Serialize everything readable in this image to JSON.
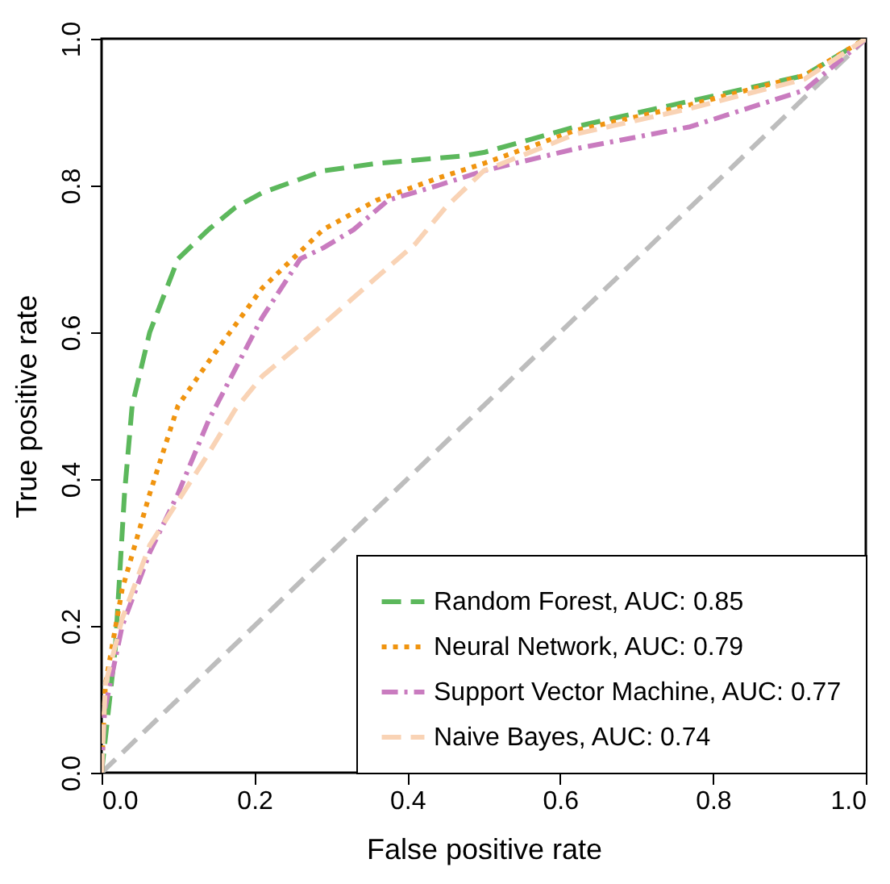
{
  "chart_data": {
    "type": "line",
    "xlabel": "False positive rate",
    "ylabel": "True positive rate",
    "xlim": [
      0,
      1
    ],
    "ylim": [
      0,
      1
    ],
    "xticks": [
      {
        "value": 0,
        "label": "0.0"
      },
      0.2,
      0.4,
      0.6,
      0.8,
      {
        "value": 1,
        "label": "1.0"
      }
    ],
    "yticks": [
      {
        "value": 0,
        "label": "0.0"
      },
      0.2,
      0.4,
      0.6,
      0.8,
      {
        "value": 1,
        "label": "1.0"
      }
    ],
    "grid": false,
    "legend": "bottom right",
    "marker": "none",
    "series": [
      {
        "name": "Random Forest, AUC: 0.85",
        "color": "#5cb85c",
        "line_style": "dashed",
        "x": [
          0,
          0.018,
          0.03,
          0.04,
          0.063,
          0.1,
          0.14,
          0.175,
          0.21,
          0.29,
          0.36,
          0.47,
          0.5,
          0.62,
          0.77,
          0.92,
          1
        ],
        "values": [
          0,
          0.17,
          0.38,
          0.5,
          0.6,
          0.7,
          0.74,
          0.77,
          0.79,
          0.82,
          0.83,
          0.84,
          0.845,
          0.88,
          0.915,
          0.95,
          1
        ]
      },
      {
        "name": "Neural Network, AUC: 0.79",
        "color": "#f0940f",
        "line_style": "dotted",
        "x": [
          0,
          0.005,
          0.027,
          0.063,
          0.1,
          0.14,
          0.175,
          0.21,
          0.25,
          0.29,
          0.36,
          0.44,
          0.5,
          0.62,
          0.77,
          0.92,
          1
        ],
        "values": [
          0,
          0.12,
          0.25,
          0.38,
          0.5,
          0.56,
          0.61,
          0.66,
          0.7,
          0.74,
          0.78,
          0.81,
          0.83,
          0.875,
          0.91,
          0.95,
          1
        ]
      },
      {
        "name": "Support Vector Machine, AUC: 0.77",
        "color": "#c97bbf",
        "line_style": "dashdot",
        "x": [
          0,
          0.004,
          0.027,
          0.063,
          0.1,
          0.14,
          0.175,
          0.21,
          0.26,
          0.29,
          0.33,
          0.375,
          0.44,
          0.5,
          0.62,
          0.77,
          0.92,
          1
        ],
        "values": [
          0,
          0.085,
          0.2,
          0.3,
          0.38,
          0.48,
          0.55,
          0.62,
          0.7,
          0.715,
          0.74,
          0.78,
          0.8,
          0.82,
          0.85,
          0.88,
          0.93,
          1
        ]
      },
      {
        "name": "Naive Bayes, AUC: 0.74",
        "color": "#f9d3b5",
        "line_style": "dashed",
        "x": [
          0,
          0.005,
          0.027,
          0.063,
          0.1,
          0.14,
          0.175,
          0.21,
          0.25,
          0.3,
          0.36,
          0.41,
          0.45,
          0.5,
          0.62,
          0.77,
          0.92,
          1
        ],
        "values": [
          0,
          0.12,
          0.21,
          0.31,
          0.37,
          0.435,
          0.495,
          0.54,
          0.575,
          0.62,
          0.675,
          0.72,
          0.77,
          0.82,
          0.87,
          0.905,
          0.945,
          1
        ]
      },
      {
        "color": "#bdbdbd",
        "line_style": "dashed",
        "x": [
          0,
          1
        ],
        "values": [
          0,
          1
        ]
      }
    ]
  }
}
